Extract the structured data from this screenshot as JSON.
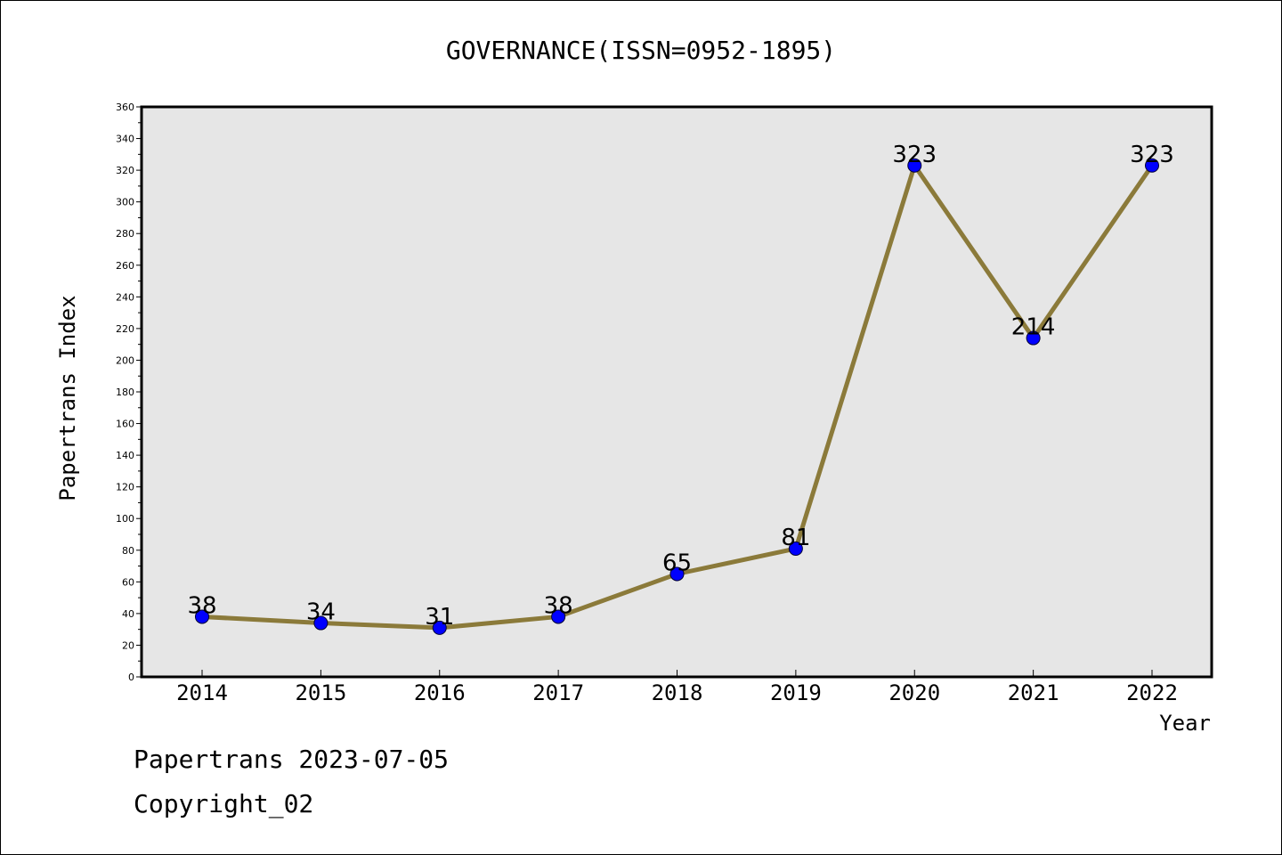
{
  "chart_data": {
    "type": "line",
    "title": "GOVERNANCE(ISSN=0952-1895)",
    "xlabel": "Year",
    "ylabel": "Papertrans Index",
    "categories": [
      "2014",
      "2015",
      "2016",
      "2017",
      "2018",
      "2019",
      "2020",
      "2021",
      "2022"
    ],
    "series": [
      {
        "values": [
          38,
          34,
          31,
          38,
          65,
          81,
          323,
          214,
          323
        ]
      }
    ],
    "data_labels": [
      "38",
      "34",
      "31",
      "38",
      "65",
      "81",
      "323",
      "214",
      "323"
    ],
    "ylim": [
      0,
      360
    ],
    "yticks": [
      "0",
      "20",
      "40",
      "60",
      "80",
      "100",
      "120",
      "140",
      "160",
      "180",
      "200",
      "220",
      "240",
      "260",
      "280",
      "300",
      "320",
      "340",
      "360"
    ],
    "grid": false,
    "legend": "none",
    "colors": {
      "line": "#8b7a3a",
      "marker": "#0000ff",
      "plot_background": "#e6e6e6"
    }
  },
  "footer": {
    "line1": "Papertrans 2023-07-05",
    "line2": "Copyright_02"
  }
}
